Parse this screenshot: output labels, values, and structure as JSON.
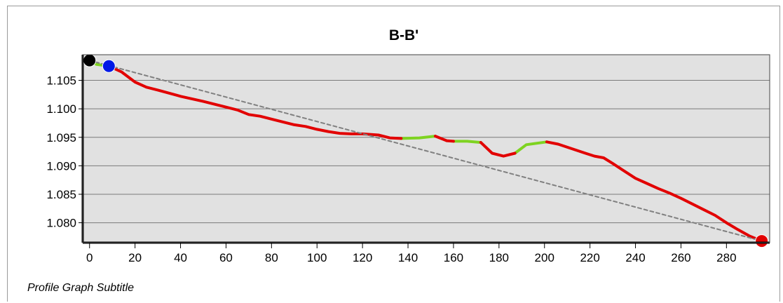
{
  "chart_data": {
    "type": "line",
    "title": "B-B'",
    "subtitle": "Profile Graph Subtitle",
    "xlim": [
      -3,
      299
    ],
    "ylim": [
      1.0765,
      1.1095
    ],
    "x_ticks": [
      0,
      20,
      40,
      60,
      80,
      100,
      120,
      140,
      160,
      180,
      200,
      220,
      240,
      260,
      280
    ],
    "y_ticks": [
      1.08,
      1.085,
      1.09,
      1.095,
      1.1,
      1.105
    ],
    "y_tick_labels": [
      "1.080",
      "1.085",
      "1.090",
      "1.095",
      "1.100",
      "1.105"
    ],
    "grid": "horizontal",
    "plot_background": "#e1e1e1",
    "series": [
      {
        "color": "#7ed321",
        "style": "solid",
        "segments": [
          {
            "x": [
              0,
              3,
              8.5
            ],
            "y": [
              1.1085,
              1.1078,
              1.1075
            ]
          },
          {
            "x": [
              137,
              145,
              152
            ],
            "y": [
              1.0948,
              1.0949,
              1.0952
            ]
          },
          {
            "x": [
              160,
              166,
              172
            ],
            "y": [
              1.0943,
              1.0943,
              1.0941
            ]
          },
          {
            "x": [
              187,
              192,
              201
            ],
            "y": [
              1.0922,
              1.0937,
              1.0942
            ]
          }
        ]
      },
      {
        "color": "#e20000",
        "style": "solid",
        "segments": [
          {
            "x": [
              8.5,
              14,
              20,
              25,
              30,
              40,
              50,
              60,
              65,
              70,
              75,
              80,
              90,
              95,
              100,
              105,
              110,
              115,
              120,
              127,
              132,
              137
            ],
            "y": [
              1.1075,
              1.1065,
              1.1047,
              1.1038,
              1.1033,
              1.1022,
              1.1013,
              1.1003,
              1.0998,
              1.099,
              1.0987,
              1.0982,
              1.0972,
              1.0969,
              1.0964,
              1.096,
              1.0957,
              1.0956,
              1.0956,
              1.0954,
              1.0949,
              1.0948
            ]
          },
          {
            "x": [
              152,
              157,
              160
            ],
            "y": [
              1.0952,
              1.0944,
              1.0943
            ]
          },
          {
            "x": [
              172,
              177,
              182,
              187
            ],
            "y": [
              1.0941,
              1.0922,
              1.0917,
              1.0922
            ]
          },
          {
            "x": [
              201,
              206,
              212,
              218,
              222,
              226,
              230,
              235,
              240,
              245,
              250,
              255,
              260,
              265,
              270,
              275,
              280,
              285,
              290,
              295.5
            ],
            "y": [
              1.0942,
              1.0938,
              1.093,
              1.0922,
              1.0917,
              1.0914,
              1.0904,
              1.0891,
              1.0878,
              1.0869,
              1.086,
              1.0852,
              1.0843,
              1.0833,
              1.0823,
              1.0813,
              1.08,
              1.0788,
              1.0777,
              1.0768
            ]
          }
        ]
      },
      {
        "color": "#808080",
        "style": "dashed",
        "segments": [
          {
            "x": [
              0,
              295.5
            ],
            "y": [
              1.1085,
              1.0768
            ]
          }
        ]
      }
    ],
    "markers": [
      {
        "x": 0,
        "y": 1.1085,
        "color": "#000000"
      },
      {
        "x": 8.5,
        "y": 1.1075,
        "color": "#0019e6"
      },
      {
        "x": 295.5,
        "y": 1.0768,
        "color": "#e20000"
      }
    ]
  }
}
